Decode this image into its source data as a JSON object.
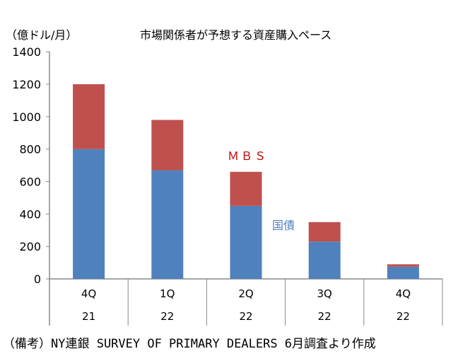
{
  "chart_data": {
    "type": "bar",
    "stacked": true,
    "title": "市場関係者が予想する資産購入ペース",
    "ylabel": "（億ドル/月）",
    "ylim": [
      0,
      1400
    ],
    "yticks": [
      "0",
      "200",
      "400",
      "600",
      "800",
      "1000",
      "1200",
      "1400"
    ],
    "categories": [
      [
        "4Q",
        "21"
      ],
      [
        "1Q",
        "22"
      ],
      [
        "2Q",
        "22"
      ],
      [
        "3Q",
        "22"
      ],
      [
        "4Q",
        "22"
      ]
    ],
    "series": [
      {
        "name": "国債",
        "color": "#4f81bd",
        "values": [
          800,
          670,
          450,
          230,
          75
        ]
      },
      {
        "name": "ＭＢＳ",
        "color": "#c0504d",
        "values": [
          400,
          310,
          210,
          120,
          15
        ]
      }
    ],
    "annotations": [
      {
        "text": "ＭＢＳ",
        "color": "#c00000"
      },
      {
        "text": "国債",
        "color": "#4f81bd"
      }
    ],
    "note": "（備考）NY連銀 SURVEY OF PRIMARY DEALERS 6月調査より作成"
  }
}
